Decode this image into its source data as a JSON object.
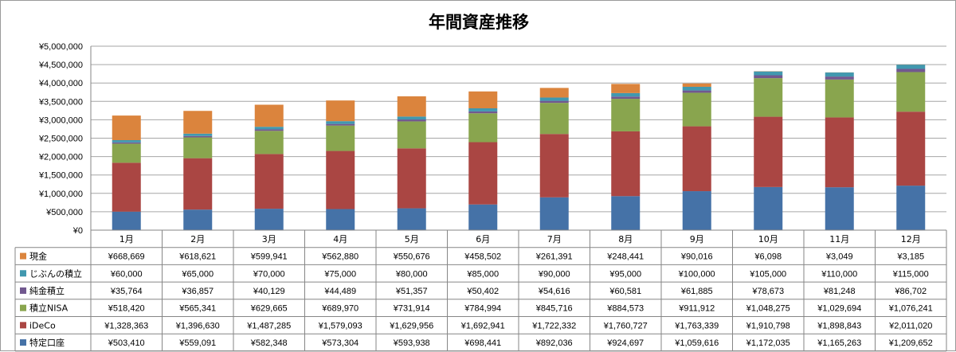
{
  "chart_data": {
    "type": "bar",
    "stacked": true,
    "title": "年間資産推移",
    "categories": [
      "1月",
      "2月",
      "3月",
      "4月",
      "5月",
      "6月",
      "7月",
      "8月",
      "9月",
      "10月",
      "11月",
      "12月"
    ],
    "ylim": [
      0,
      5000000
    ],
    "yticks": [
      "¥0",
      "¥500,000",
      "¥1,000,000",
      "¥1,500,000",
      "¥2,000,000",
      "¥2,500,000",
      "¥3,000,000",
      "¥3,500,000",
      "¥4,000,000",
      "¥4,500,000",
      "¥5,000,000"
    ],
    "grid": true,
    "legend": "data-table",
    "series_stack_order": [
      "特定口座",
      "iDeCo",
      "積立NISA",
      "純金積立",
      "じぶんの積立",
      "現金"
    ],
    "series": [
      {
        "name": "特定口座",
        "color": "#4572A7",
        "values": [
          503410,
          559091,
          582348,
          573304,
          593938,
          698441,
          892036,
          924697,
          1059616,
          1172035,
          1165263,
          1209652
        ],
        "labels": [
          "¥503,410",
          "¥559,091",
          "¥582,348",
          "¥573,304",
          "¥593,938",
          "¥698,441",
          "¥892,036",
          "¥924,697",
          "¥1,059,616",
          "¥1,172,035",
          "¥1,165,263",
          "¥1,209,652"
        ]
      },
      {
        "name": "iDeCo",
        "color": "#AA4643",
        "values": [
          1328363,
          1396630,
          1487285,
          1579093,
          1629956,
          1692941,
          1722332,
          1760727,
          1763339,
          1910798,
          1898843,
          2011020
        ],
        "labels": [
          "¥1,328,363",
          "¥1,396,630",
          "¥1,487,285",
          "¥1,579,093",
          "¥1,629,956",
          "¥1,692,941",
          "¥1,722,332",
          "¥1,760,727",
          "¥1,763,339",
          "¥1,910,798",
          "¥1,898,843",
          "¥2,011,020"
        ]
      },
      {
        "name": "積立NISA",
        "color": "#89A54E",
        "values": [
          518420,
          565341,
          629665,
          689970,
          731914,
          784994,
          845716,
          884573,
          911912,
          1048275,
          1029694,
          1076241
        ],
        "labels": [
          "¥518,420",
          "¥565,341",
          "¥629,665",
          "¥689,970",
          "¥731,914",
          "¥784,994",
          "¥845,716",
          "¥884,573",
          "¥911,912",
          "¥1,048,275",
          "¥1,029,694",
          "¥1,076,241"
        ]
      },
      {
        "name": "純金積立",
        "color": "#71588F",
        "values": [
          35764,
          36857,
          40129,
          44489,
          51357,
          50402,
          54616,
          60581,
          61885,
          78673,
          81248,
          86702
        ],
        "labels": [
          "¥35,764",
          "¥36,857",
          "¥40,129",
          "¥44,489",
          "¥51,357",
          "¥50,402",
          "¥54,616",
          "¥60,581",
          "¥61,885",
          "¥78,673",
          "¥81,248",
          "¥86,702"
        ]
      },
      {
        "name": "じぶんの積立",
        "color": "#4198AF",
        "values": [
          60000,
          65000,
          70000,
          75000,
          80000,
          85000,
          90000,
          95000,
          100000,
          105000,
          110000,
          115000
        ],
        "labels": [
          "¥60,000",
          "¥65,000",
          "¥70,000",
          "¥75,000",
          "¥80,000",
          "¥85,000",
          "¥90,000",
          "¥95,000",
          "¥100,000",
          "¥105,000",
          "¥110,000",
          "¥115,000"
        ]
      },
      {
        "name": "現金",
        "color": "#DB843D",
        "values": [
          668669,
          618621,
          599941,
          562880,
          550676,
          458502,
          261391,
          248441,
          90016,
          6098,
          3049,
          3185
        ],
        "labels": [
          "¥668,669",
          "¥618,621",
          "¥599,941",
          "¥562,880",
          "¥550,676",
          "¥458,502",
          "¥261,391",
          "¥248,441",
          "¥90,016",
          "¥6,098",
          "¥3,049",
          "¥3,185"
        ]
      }
    ],
    "table_row_order": [
      "現金",
      "じぶんの積立",
      "純金積立",
      "積立NISA",
      "iDeCo",
      "特定口座"
    ]
  }
}
